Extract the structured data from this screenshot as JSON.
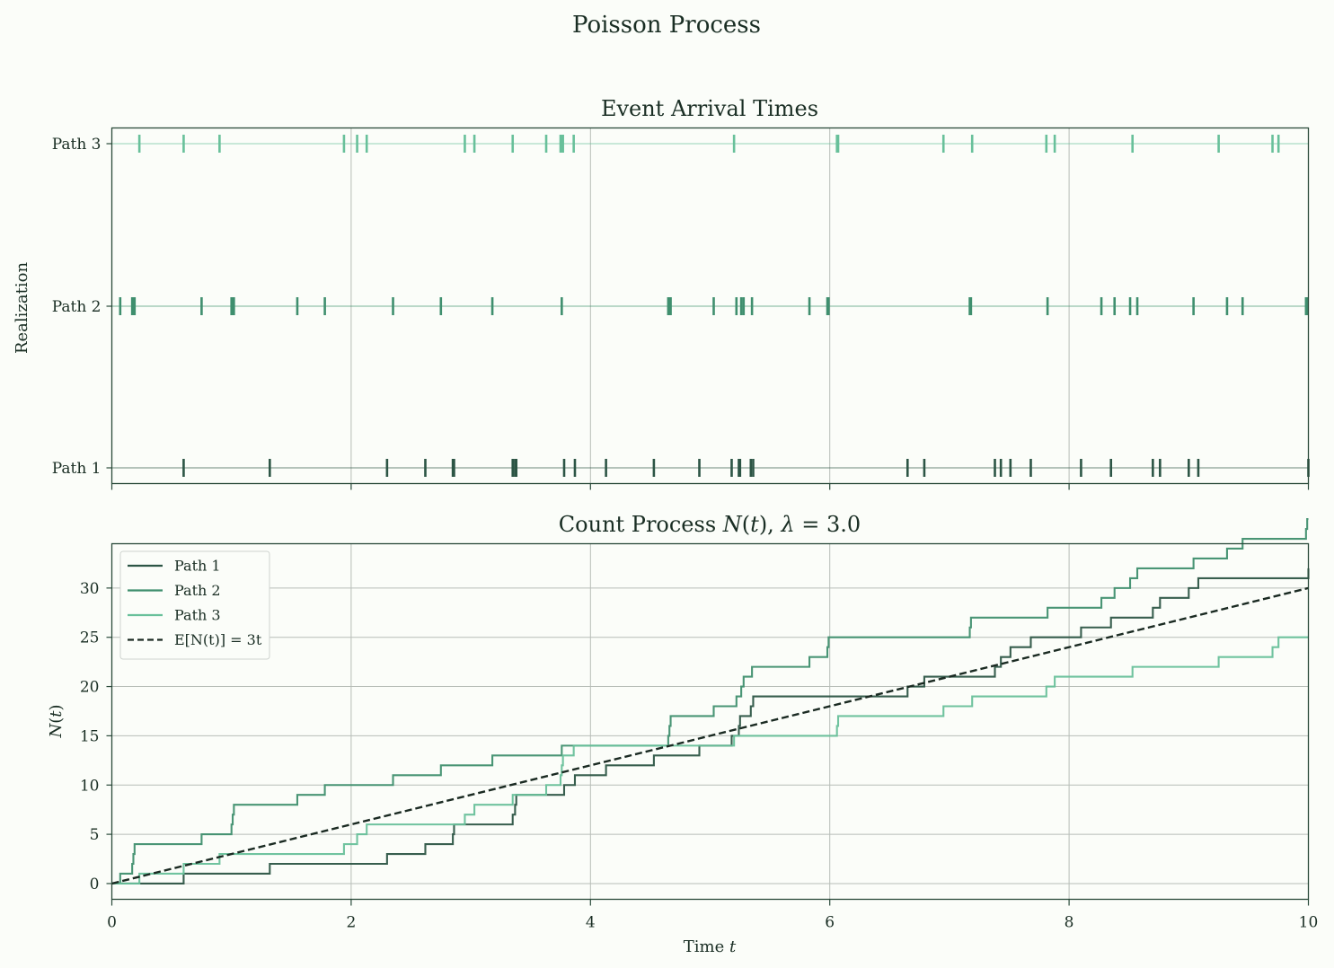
{
  "figure": {
    "suptitle": "Poisson Process"
  },
  "colors": {
    "path1": "#2c5545",
    "path2": "#3f8f6e",
    "path3": "#68c09a",
    "expected": "#1a2a22",
    "grid": "#b7bdb7",
    "axes": "#2a4a3a",
    "background": "#fbfdf9"
  },
  "chart_data": [
    {
      "type": "scatter",
      "title": "Event Arrival Times",
      "ylabel": "Realization",
      "xlim": [
        0,
        10
      ],
      "grid": true,
      "categories": [
        "Path 1",
        "Path 2",
        "Path 3"
      ],
      "series": [
        {
          "name": "Path 1",
          "x": [
            0.6,
            1.32,
            2.3,
            2.62,
            2.85,
            2.86,
            3.35,
            3.37,
            3.38,
            3.78,
            3.87,
            4.13,
            4.53,
            4.91,
            5.18,
            5.24,
            5.25,
            5.34,
            5.36,
            6.65,
            6.79,
            7.38,
            7.43,
            7.51,
            7.68,
            8.1,
            8.35,
            8.7,
            8.76,
            9.0,
            9.08,
            10.0
          ]
        },
        {
          "name": "Path 2",
          "x": [
            0.07,
            0.17,
            0.18,
            0.19,
            0.75,
            1.0,
            1.01,
            1.02,
            1.55,
            1.78,
            2.35,
            2.75,
            3.18,
            3.76,
            4.65,
            4.66,
            4.67,
            5.03,
            5.22,
            5.26,
            5.28,
            5.35,
            5.83,
            5.98,
            5.99,
            7.17,
            7.18,
            7.82,
            8.27,
            8.38,
            8.51,
            8.57,
            9.04,
            9.32,
            9.45,
            9.98,
            9.99
          ]
        },
        {
          "name": "Path 3",
          "x": [
            0.23,
            0.6,
            0.9,
            1.94,
            2.05,
            2.13,
            2.95,
            3.03,
            3.35,
            3.63,
            3.75,
            3.76,
            3.77,
            3.86,
            5.2,
            6.06,
            6.07,
            6.95,
            7.19,
            7.81,
            7.88,
            8.53,
            9.25,
            9.7,
            9.75
          ]
        }
      ]
    },
    {
      "type": "line",
      "title": "Count Process N(t), λ = 3.0",
      "xlabel": "Time t",
      "ylabel": "N(t)",
      "xlim": [
        0,
        10
      ],
      "ylim": [
        -1.6,
        34.5
      ],
      "xticks": [
        0,
        2,
        4,
        6,
        8,
        10
      ],
      "yticks": [
        0,
        5,
        10,
        15,
        20,
        25,
        30
      ],
      "grid": true,
      "legend": "top-left",
      "series": [
        {
          "name": "Path 1",
          "style": "step"
        },
        {
          "name": "Path 2",
          "style": "step"
        },
        {
          "name": "Path 3",
          "style": "step"
        },
        {
          "name": "E[N(t)] = 3t",
          "style": "dashed",
          "x": [
            0,
            10
          ],
          "y": [
            0,
            30
          ]
        }
      ]
    }
  ]
}
